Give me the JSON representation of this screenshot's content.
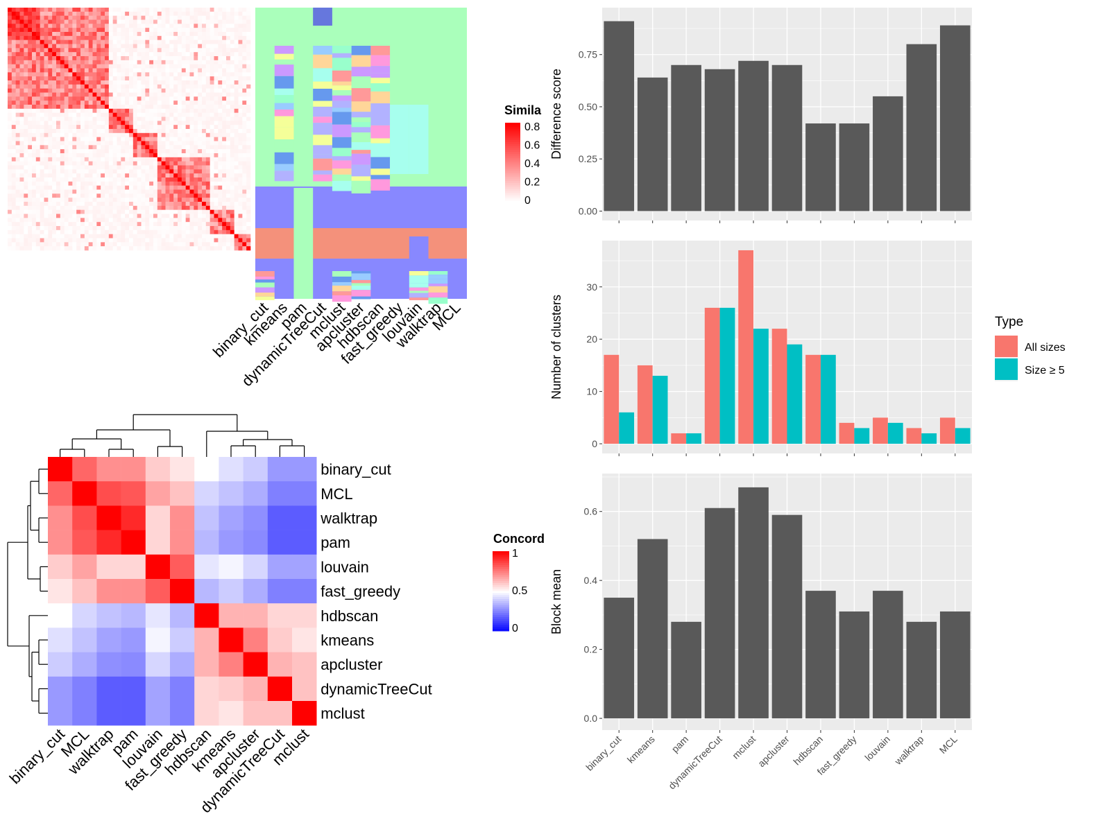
{
  "colors": {
    "panel_bg": "#ebebeb",
    "grid": "#ffffff",
    "bar_dark": "#595959",
    "all_sizes": "#f8766d",
    "size5": "#00bfc4",
    "concord_high": "#ff0000",
    "concord_mid": "#ffffff",
    "concord_low": "#0000ff",
    "sim_high": "#ff0000",
    "sim_low": "#ffffff"
  },
  "similarity_heatmap": {
    "columns": [
      "binary_cut",
      "kmeans",
      "pam",
      "dynamicTreeCut",
      "mclust",
      "apcluster",
      "hdbscan",
      "fast_greedy",
      "louvain",
      "walktrap",
      "MCL"
    ],
    "legend_title": "Simila",
    "legend_ticks": [
      "0.8",
      "0.6",
      "0.4",
      "0.2",
      "0"
    ]
  },
  "concordance_heatmap": {
    "legend_title": "Concord",
    "legend_ticks": [
      "1",
      "0.5",
      "0"
    ],
    "methods": [
      "binary_cut",
      "MCL",
      "walktrap",
      "pam",
      "louvain",
      "fast_greedy",
      "hdbscan",
      "kmeans",
      "apcluster",
      "dynamicTreeCut",
      "mclust"
    ],
    "values": [
      [
        1.0,
        0.8,
        0.72,
        0.72,
        0.6,
        0.55,
        0.5,
        0.44,
        0.4,
        0.3,
        0.3
      ],
      [
        0.8,
        1.0,
        0.85,
        0.83,
        0.68,
        0.62,
        0.42,
        0.38,
        0.34,
        0.25,
        0.25
      ],
      [
        0.72,
        0.85,
        1.0,
        0.92,
        0.58,
        0.72,
        0.38,
        0.32,
        0.28,
        0.18,
        0.18
      ],
      [
        0.72,
        0.83,
        0.92,
        1.0,
        0.58,
        0.72,
        0.36,
        0.3,
        0.27,
        0.18,
        0.18
      ],
      [
        0.6,
        0.68,
        0.58,
        0.58,
        1.0,
        0.82,
        0.45,
        0.48,
        0.42,
        0.32,
        0.32
      ],
      [
        0.55,
        0.62,
        0.72,
        0.72,
        0.82,
        1.0,
        0.36,
        0.4,
        0.34,
        0.25,
        0.25
      ],
      [
        0.5,
        0.42,
        0.38,
        0.36,
        0.45,
        0.36,
        1.0,
        0.65,
        0.65,
        0.58,
        0.58
      ],
      [
        0.44,
        0.38,
        0.32,
        0.3,
        0.48,
        0.4,
        0.65,
        1.0,
        0.75,
        0.6,
        0.55
      ],
      [
        0.4,
        0.34,
        0.28,
        0.27,
        0.42,
        0.34,
        0.65,
        0.75,
        1.0,
        0.65,
        0.62
      ],
      [
        0.3,
        0.25,
        0.18,
        0.18,
        0.32,
        0.25,
        0.58,
        0.6,
        0.65,
        1.0,
        0.62
      ],
      [
        0.3,
        0.25,
        0.18,
        0.18,
        0.32,
        0.25,
        0.58,
        0.55,
        0.62,
        0.62,
        1.0
      ]
    ]
  },
  "chart_data": [
    {
      "type": "bar",
      "categories": [
        "binary_cut",
        "kmeans",
        "pam",
        "dynamicTreeCut",
        "mclust",
        "apcluster",
        "hdbscan",
        "fast_greedy",
        "louvain",
        "walktrap",
        "MCL"
      ],
      "values": [
        0.91,
        0.64,
        0.7,
        0.68,
        0.72,
        0.7,
        0.42,
        0.42,
        0.55,
        0.8,
        0.89
      ],
      "ylabel": "Difference score",
      "ylim": [
        -0.045,
        0.975
      ],
      "yticks": [
        0.0,
        0.25,
        0.5,
        0.75
      ],
      "ytick_labels": [
        "0.00",
        "0.25",
        "0.50",
        "0.75"
      ]
    },
    {
      "type": "bar",
      "categories": [
        "binary_cut",
        "kmeans",
        "pam",
        "dynamicTreeCut",
        "mclust",
        "apcluster",
        "hdbscan",
        "fast_greedy",
        "louvain",
        "walktrap",
        "MCL"
      ],
      "series": [
        {
          "name": "All sizes",
          "values": [
            17,
            15,
            2,
            26,
            37,
            22,
            17,
            4,
            5,
            3,
            5
          ]
        },
        {
          "name": "Size ≥ 5",
          "values": [
            6,
            13,
            2,
            26,
            22,
            19,
            17,
            3,
            4,
            2,
            3
          ]
        }
      ],
      "ylabel": "Number of clusters",
      "ylim": [
        -1.85,
        38.85
      ],
      "yticks": [
        0,
        10,
        20,
        30
      ],
      "ytick_labels": [
        "0",
        "10",
        "20",
        "30"
      ],
      "legend_title": "Type",
      "legend_position": "right"
    },
    {
      "type": "bar",
      "categories": [
        "binary_cut",
        "kmeans",
        "pam",
        "dynamicTreeCut",
        "mclust",
        "apcluster",
        "hdbscan",
        "fast_greedy",
        "louvain",
        "walktrap",
        "MCL"
      ],
      "values": [
        0.35,
        0.52,
        0.28,
        0.61,
        0.67,
        0.59,
        0.37,
        0.31,
        0.37,
        0.28,
        0.31
      ],
      "ylabel": "Block mean",
      "ylim": [
        -0.034,
        0.71
      ],
      "yticks": [
        0.0,
        0.2,
        0.4,
        0.6
      ],
      "ytick_labels": [
        "0.0",
        "0.2",
        "0.4",
        "0.6"
      ]
    }
  ]
}
